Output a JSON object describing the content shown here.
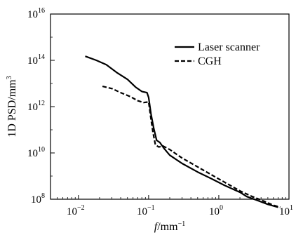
{
  "chart_data": {
    "type": "line",
    "xlabel": "f/mm",
    "xlabel_exp": "−1",
    "ylabel": "1D PSD/mm",
    "ylabel_exp": "3",
    "x_scale": "log",
    "y_scale": "log",
    "xlim": [
      0.004,
      10
    ],
    "ylim": [
      100000000.0,
      1e+16
    ],
    "x_ticks": [
      {
        "value": 0.01,
        "base": "10",
        "exp": "−2"
      },
      {
        "value": 0.1,
        "base": "10",
        "exp": "−1"
      },
      {
        "value": 1,
        "base": "10",
        "exp": "0"
      },
      {
        "value": 10,
        "base": "10",
        "exp": "1"
      }
    ],
    "y_ticks": [
      {
        "value": 100000000.0,
        "base": "10",
        "exp": "8"
      },
      {
        "value": 10000000000.0,
        "base": "10",
        "exp": "10"
      },
      {
        "value": 1000000000000.0,
        "base": "10",
        "exp": "12"
      },
      {
        "value": 100000000000000.0,
        "base": "10",
        "exp": "14"
      },
      {
        "value": 1e+16,
        "base": "10",
        "exp": "16"
      }
    ],
    "grid": false,
    "legend_position": "top-right",
    "series": [
      {
        "name": "Laser scanner",
        "style": "solid",
        "color": "#000000",
        "x": [
          0.0125,
          0.018,
          0.025,
          0.035,
          0.05,
          0.065,
          0.08,
          0.095,
          0.1,
          0.108,
          0.118,
          0.13,
          0.145,
          0.165,
          0.2,
          0.3,
          0.5,
          0.8,
          1.2,
          2.0,
          2.5,
          3.5,
          5.0,
          7.0
        ],
        "y": [
          150000000000000.0,
          100000000000000.0,
          65000000000000.0,
          30000000000000.0,
          15000000000000.0,
          7000000000000.0,
          4500000000000.0,
          4000000000000.0,
          2500000000000.0,
          500000000000.0,
          120000000000.0,
          35000000000.0,
          28000000000.0,
          16000000000.0,
          8000000000.0,
          3500000000.0,
          1500000000.0,
          750000000.0,
          400000000.0,
          200000000.0,
          130000000.0,
          90000000.0,
          60000000.0,
          45000000.0
        ]
      },
      {
        "name": "CGH",
        "style": "dashed",
        "color": "#000000",
        "x": [
          0.022,
          0.03,
          0.04,
          0.055,
          0.07,
          0.085,
          0.1,
          0.108,
          0.115,
          0.125,
          0.14,
          0.16,
          0.2,
          0.3,
          0.5,
          0.8,
          1.2,
          2.0,
          3.0,
          4.5,
          6.0,
          7.5
        ],
        "y": [
          7500000000000.0,
          6000000000000.0,
          4000000000000.0,
          2700000000000.0,
          1800000000000.0,
          1500000000000.0,
          1600000000000.0,
          300000000000.0,
          80000000000.0,
          22000000000.0,
          18000000000.0,
          20000000000.0,
          14000000000.0,
          6000000000.0,
          2500000000.0,
          1100000000.0,
          550000000.0,
          230000000.0,
          130000000.0,
          80000000.0,
          55000000.0,
          45000000.0
        ]
      }
    ]
  }
}
